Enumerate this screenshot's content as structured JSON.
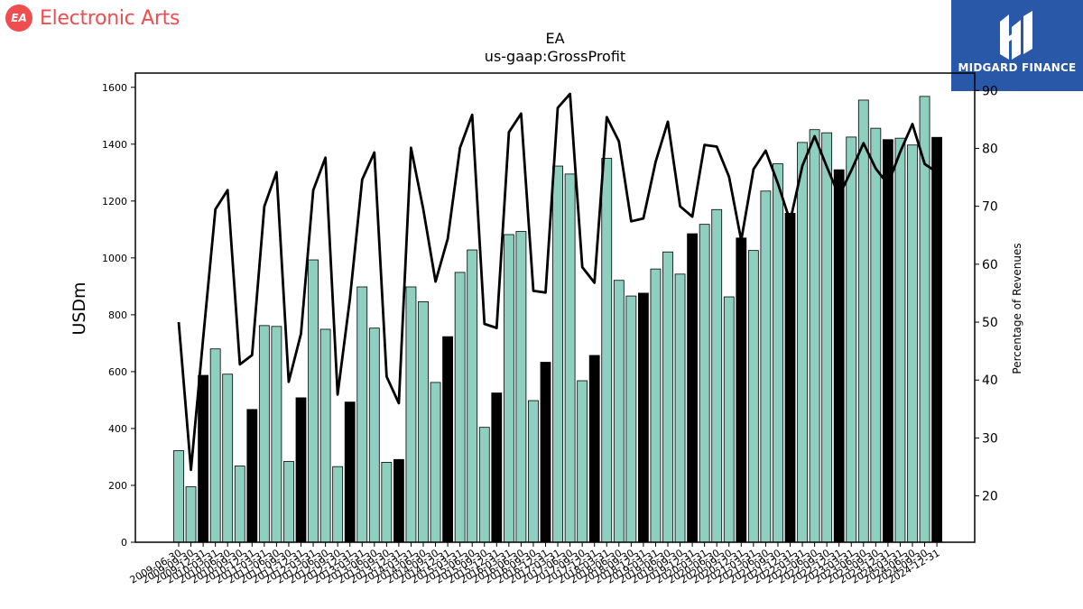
{
  "header": {
    "brand_name": "Electronic Arts",
    "brand_mark": "EA",
    "partner_name": "MIDGARD FINANCE"
  },
  "colors": {
    "brand": "#ef4d4f",
    "partner_bg": "#2a58a8",
    "bar_default": "#8ecfc0",
    "bar_highlight": "#000000",
    "line": "#000000"
  },
  "chart_data": {
    "type": "bar",
    "title": "EA",
    "subtitle": "us-gaap:GrossProfit",
    "ylabel": "USDm",
    "y2label": "Percentage of Revenues",
    "ylim": [
      0,
      1650
    ],
    "y2lim": [
      12,
      93
    ],
    "yticks": [
      0,
      200,
      400,
      600,
      800,
      1000,
      1200,
      1400,
      1600
    ],
    "y2ticks": [
      20,
      30,
      40,
      50,
      60,
      70,
      80,
      90
    ],
    "grid": false,
    "categories": [
      "2009-06-30",
      "2009-09-30",
      "2009-12-31",
      "2010-03-31",
      "2010-06-30",
      "2010-09-30",
      "2010-12-31",
      "2011-03-31",
      "2011-06-30",
      "2011-09-30",
      "2011-12-31",
      "2012-03-31",
      "2012-06-30",
      "2012-09-30",
      "2012-12-31",
      "2013-03-31",
      "2013-06-30",
      "2013-09-30",
      "2013-12-31",
      "2014-03-31",
      "2014-06-30",
      "2014-09-30",
      "2014-12-31",
      "2015-03-31",
      "2015-06-30",
      "2015-09-30",
      "2015-12-31",
      "2016-03-31",
      "2016-06-30",
      "2016-09-30",
      "2016-12-31",
      "2017-03-31",
      "2017-06-30",
      "2017-09-30",
      "2017-12-31",
      "2018-03-31",
      "2018-06-30",
      "2018-09-30",
      "2018-12-31",
      "2019-03-31",
      "2019-06-30",
      "2019-09-30",
      "2019-12-31",
      "2020-03-31",
      "2020-06-30",
      "2020-09-30",
      "2020-12-31",
      "2021-03-31",
      "2021-06-30",
      "2021-09-30",
      "2021-12-31",
      "2022-03-31",
      "2022-06-30",
      "2022-09-30",
      "2022-12-31",
      "2023-03-31",
      "2023-06-30",
      "2023-09-30",
      "2023-12-31",
      "2024-03-31",
      "2024-06-30",
      "2024-09-30",
      "2024-12-31"
    ],
    "xtick_labels": [
      "2009-06-30",
      "2009-09-30",
      "2009-12-31",
      "2010-03-31",
      "2010-06-30",
      "2010-09-30",
      "2010-12-31",
      "2011-03-31",
      "2011-06-30",
      "2011-09-30",
      "2011-12-31",
      "2012-03-31",
      "2012-06-30",
      "2012-09-30",
      "2012-12-31",
      "2013-03-31",
      "2013-06-30",
      "2013-09-30",
      "2013-12-31",
      "2014-03-31",
      "2014-06-30",
      "2014-09-30",
      "2014-12-31",
      "2015-03-31",
      "2015-06-30",
      "2015-09-30",
      "2015-12-31",
      "2016-03-31",
      "2016-06-30",
      "2016-09-30",
      "2016-12-31",
      "2017-03-31",
      "2017-06-30",
      "2017-09-30",
      "2017-12-31",
      "2018-03-31",
      "2018-06-30",
      "2018-09-30",
      "2018-12-31",
      "2019-03-31",
      "2019-06-30",
      "2019-09-30",
      "2019-12-31",
      "2020-03-31",
      "2020-06-30",
      "2020-09-30",
      "2020-12-31",
      "2021-03-31",
      "2021-06-30",
      "2021-09-30",
      "2021-12-31",
      "2022-03-31",
      "2022-06-30",
      "2022-09-30",
      "2022-12-31",
      "2023-03-31",
      "2023-06-30",
      "2023-09-30",
      "2023-12-31",
      "2024-03-31",
      "2024-06-30",
      "2024-09-30",
      "2024-12-31"
    ],
    "highlighted": [
      false,
      false,
      true,
      false,
      false,
      false,
      true,
      false,
      false,
      false,
      true,
      false,
      false,
      false,
      true,
      false,
      false,
      false,
      true,
      false,
      false,
      false,
      true,
      false,
      false,
      false,
      true,
      false,
      false,
      false,
      true,
      false,
      false,
      false,
      true,
      false,
      false,
      false,
      true,
      false,
      false,
      false,
      true,
      false,
      false,
      false,
      true,
      false,
      false,
      false,
      true,
      false,
      false,
      false,
      true,
      false,
      false,
      false,
      true,
      false,
      false,
      false,
      true
    ],
    "series": [
      {
        "axis": "left",
        "type": "bar",
        "values": [
          322,
          195,
          587,
          680,
          591,
          268,
          467,
          762,
          759,
          284,
          508,
          993,
          749,
          266,
          493,
          898,
          753,
          281,
          291,
          898,
          846,
          562,
          723,
          949,
          1028,
          404,
          525,
          1082,
          1093,
          498,
          633,
          1323,
          1295,
          568,
          657,
          1350,
          921,
          866,
          876,
          961,
          1021,
          943,
          1085,
          1118,
          1170,
          863,
          1070,
          1026,
          1235,
          1331,
          1157,
          1406,
          1451,
          1440,
          1310,
          1425,
          1555,
          1456,
          1416,
          1421,
          1397,
          1568,
          1424
        ]
      },
      {
        "axis": "right",
        "type": "line",
        "values": [
          50,
          24.5,
          47.2,
          69.5,
          72.8,
          42.7,
          44.3,
          70,
          75.9,
          39.7,
          48,
          72.8,
          78.4,
          37.5,
          54,
          74.6,
          79.3,
          40.6,
          36,
          80.1,
          69.5,
          57,
          64.4,
          80.1,
          85.8,
          49.7,
          49,
          82.8,
          86,
          55.4,
          55.1,
          87,
          89.4,
          59.5,
          56.8,
          85.4,
          81.2,
          67.4,
          67.9,
          77.7,
          84.6,
          70,
          68.2,
          80.6,
          80.3,
          75.1,
          64.1,
          76.4,
          79.6,
          73.9,
          67.4,
          77,
          82.1,
          76.8,
          71.8,
          76.2,
          80.9,
          76.5,
          73.8,
          79.4,
          84.2,
          77.3,
          75.9
        ]
      }
    ]
  }
}
